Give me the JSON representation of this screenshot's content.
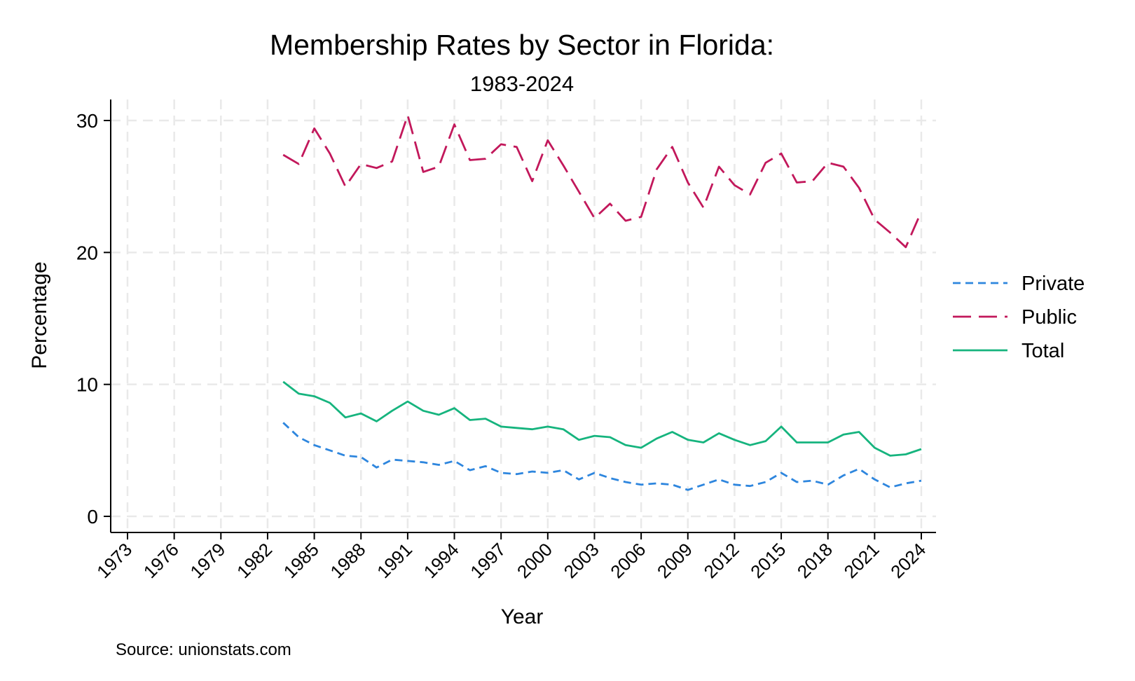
{
  "chart_data": {
    "type": "line",
    "title": "Membership Rates by Sector in Florida:",
    "subtitle": "1983-2024",
    "xlabel": "Year",
    "ylabel": "Percentage",
    "source": "Source: unionstats.com",
    "xlim": [
      1973,
      2024
    ],
    "ylim": [
      0,
      30
    ],
    "x_ticks": [
      1973,
      1976,
      1979,
      1982,
      1985,
      1988,
      1991,
      1994,
      1997,
      2000,
      2003,
      2006,
      2009,
      2012,
      2015,
      2018,
      2021,
      2024
    ],
    "y_ticks": [
      0,
      10,
      20,
      30
    ],
    "grid": true,
    "legend_position": "right",
    "x": [
      1983,
      1984,
      1985,
      1986,
      1987,
      1988,
      1989,
      1990,
      1991,
      1992,
      1993,
      1994,
      1995,
      1996,
      1997,
      1998,
      1999,
      2000,
      2001,
      2002,
      2003,
      2004,
      2005,
      2006,
      2007,
      2008,
      2009,
      2010,
      2011,
      2012,
      2013,
      2014,
      2015,
      2016,
      2017,
      2018,
      2019,
      2020,
      2021,
      2022,
      2023,
      2024
    ],
    "series": [
      {
        "name": "Private",
        "color": "#2e86de",
        "dash": "short",
        "values": [
          7.1,
          6.0,
          5.4,
          5.0,
          4.6,
          4.5,
          3.7,
          4.3,
          4.2,
          4.1,
          3.9,
          4.2,
          3.5,
          3.8,
          3.3,
          3.2,
          3.4,
          3.3,
          3.5,
          2.8,
          3.3,
          2.9,
          2.6,
          2.4,
          2.5,
          2.4,
          2.0,
          2.4,
          2.8,
          2.4,
          2.3,
          2.6,
          3.3,
          2.6,
          2.7,
          2.4,
          3.1,
          3.6,
          2.8,
          2.2,
          2.5,
          2.7
        ]
      },
      {
        "name": "Public",
        "color": "#c2185b",
        "dash": "long",
        "values": [
          27.4,
          26.7,
          29.4,
          27.5,
          25.0,
          26.7,
          26.4,
          26.9,
          30.4,
          26.1,
          26.5,
          29.7,
          27.0,
          27.1,
          28.2,
          28.0,
          25.4,
          28.5,
          26.6,
          24.6,
          22.6,
          23.7,
          22.4,
          22.7,
          26.3,
          28.0,
          25.3,
          23.4,
          26.5,
          25.1,
          24.4,
          26.8,
          27.5,
          25.3,
          25.4,
          26.8,
          26.5,
          24.9,
          22.5,
          21.5,
          20.4,
          23.1
        ]
      },
      {
        "name": "Total",
        "color": "#16b47e",
        "dash": "solid",
        "values": [
          10.2,
          9.3,
          9.1,
          8.6,
          7.5,
          7.8,
          7.2,
          8.0,
          8.7,
          8.0,
          7.7,
          8.2,
          7.3,
          7.4,
          6.8,
          6.7,
          6.6,
          6.8,
          6.6,
          5.8,
          6.1,
          6.0,
          5.4,
          5.2,
          5.9,
          6.4,
          5.8,
          5.6,
          6.3,
          5.8,
          5.4,
          5.7,
          6.8,
          5.6,
          5.6,
          5.6,
          6.2,
          6.4,
          5.2,
          4.6,
          4.7,
          5.1
        ]
      }
    ]
  }
}
